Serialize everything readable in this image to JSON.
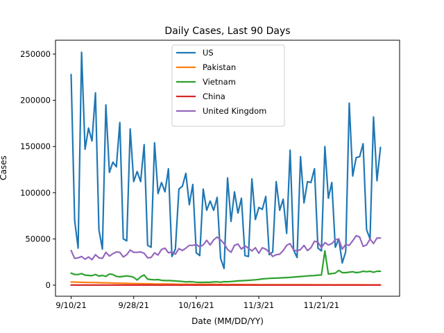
{
  "chart_data": {
    "type": "line",
    "title": "Daily Cases, Last 90 Days",
    "xlabel": "Date (MM/DD/YY)",
    "ylabel": "Cases",
    "xlim": [
      -4.5,
      94.5
    ],
    "ylim": [
      -12000,
      265000
    ],
    "x_ticks": [
      {
        "label": "9/10/21",
        "day": 0
      },
      {
        "label": "9/28/21",
        "day": 18
      },
      {
        "label": "10/16/21",
        "day": 36
      },
      {
        "label": "11/3/21",
        "day": 54
      },
      {
        "label": "11/21/21",
        "day": 72
      }
    ],
    "y_ticks": [
      {
        "label": "0",
        "value": 0
      },
      {
        "label": "50000",
        "value": 50000
      },
      {
        "label": "100000",
        "value": 100000
      },
      {
        "label": "150000",
        "value": 150000
      },
      {
        "label": "200000",
        "value": 200000
      },
      {
        "label": "250000",
        "value": 250000
      }
    ],
    "grid": false,
    "legend_position": "upper center",
    "series": [
      {
        "name": "US",
        "color": "#1f77b4",
        "values": [
          228000,
          70000,
          40000,
          252000,
          147000,
          170000,
          156000,
          208000,
          60000,
          39000,
          195000,
          122000,
          133000,
          128000,
          176000,
          50000,
          48000,
          169000,
          112000,
          123000,
          112000,
          152000,
          43000,
          41000,
          154000,
          99000,
          111000,
          101000,
          126000,
          31000,
          39000,
          104000,
          107000,
          121000,
          87000,
          109000,
          35000,
          32000,
          104000,
          81000,
          91000,
          81000,
          95000,
          29000,
          18000,
          116000,
          69000,
          101000,
          78000,
          94000,
          32000,
          31000,
          115000,
          71000,
          84000,
          82000,
          96000,
          33000,
          36000,
          112000,
          81000,
          93000,
          56000,
          146000,
          38000,
          30000,
          139000,
          89000,
          112000,
          111000,
          126000,
          40000,
          37000,
          150000,
          94000,
          111000,
          41000,
          50000,
          24000,
          36000,
          197000,
          118000,
          138000,
          139000,
          153000,
          60000,
          50000,
          182000,
          113000,
          149000
        ]
      },
      {
        "name": "Pakistan",
        "color": "#ff7f0e",
        "values": [
          3400,
          3300,
          3200,
          3100,
          3000,
          2900,
          2900,
          2800,
          2700,
          2600,
          2500,
          2400,
          2300,
          2200,
          2100,
          2000,
          1900,
          1800,
          1700,
          1600,
          1500,
          1500,
          1400,
          1400,
          1300,
          1300,
          1200,
          1200,
          1100,
          1100,
          1000,
          1000,
          1000,
          900,
          900,
          900,
          900,
          850,
          850,
          800,
          800,
          800,
          750,
          750,
          700,
          700,
          700,
          650,
          650,
          650,
          600,
          600,
          600,
          600,
          550,
          550,
          550,
          550,
          500,
          500,
          500,
          500,
          480,
          480,
          470,
          460,
          450,
          450,
          440,
          430,
          420,
          420,
          410,
          400,
          400,
          400,
          390,
          380,
          380,
          370,
          370,
          360,
          360,
          350,
          350,
          340,
          340,
          330,
          330,
          320
        ]
      },
      {
        "name": "Vietnam",
        "color": "#2ca02c",
        "values": [
          13000,
          11500,
          11500,
          12500,
          10800,
          10500,
          10200,
          11600,
          9800,
          10500,
          9500,
          12000,
          11500,
          9500,
          9000,
          9500,
          10000,
          9500,
          8500,
          5500,
          9000,
          11000,
          6500,
          6000,
          5800,
          6000,
          5200,
          5000,
          5000,
          4800,
          4500,
          4200,
          4000,
          3500,
          3800,
          3600,
          3200,
          3000,
          3000,
          3200,
          3100,
          3500,
          3600,
          3200,
          3800,
          3700,
          3900,
          4200,
          4600,
          4800,
          5000,
          5200,
          5500,
          5800,
          6200,
          6800,
          7000,
          7300,
          7500,
          7600,
          7800,
          8000,
          8200,
          8400,
          8700,
          9000,
          9300,
          9600,
          10000,
          10200,
          10400,
          10800,
          11000,
          37000,
          12000,
          12500,
          13000,
          16000,
          13500,
          13500,
          14000,
          14500,
          13500,
          14000,
          15000,
          14500,
          15000,
          14000,
          15000,
          15000
        ]
      },
      {
        "name": "China",
        "color": "#d62728",
        "values": [
          80,
          75,
          70,
          85,
          80,
          70,
          60,
          70,
          80,
          85,
          90,
          75,
          70,
          65,
          70,
          75,
          80,
          70,
          60,
          55,
          50,
          60,
          70,
          65,
          55,
          40,
          45,
          50,
          55,
          60,
          50,
          45,
          40,
          55,
          65,
          70,
          60,
          50,
          45,
          55,
          60,
          70,
          65,
          55,
          50,
          45,
          50,
          55,
          60,
          65,
          70,
          60,
          55,
          50,
          45,
          50,
          55,
          60,
          65,
          60,
          55,
          50,
          55,
          60,
          65,
          60,
          55,
          50,
          45,
          50,
          55,
          60,
          65,
          60,
          55,
          50,
          45,
          50,
          55,
          60,
          65,
          60,
          55,
          50,
          45,
          50,
          55,
          60,
          60,
          60
        ]
      },
      {
        "name": "United Kingdom",
        "color": "#9467bd",
        "values": [
          37500,
          29000,
          29500,
          31000,
          28000,
          30500,
          27500,
          33000,
          29500,
          29000,
          35500,
          31500,
          34000,
          36000,
          35500,
          30500,
          33000,
          38000,
          35500,
          35500,
          36000,
          34500,
          29500,
          30000,
          35000,
          32500,
          38500,
          40000,
          35000,
          36000,
          33500,
          39500,
          37500,
          40000,
          43000,
          43000,
          44000,
          41500,
          43500,
          48500,
          43500,
          49000,
          52000,
          49000,
          45000,
          38500,
          35500,
          43000,
          44500,
          39000,
          42500,
          40000,
          37000,
          40500,
          34500,
          40500,
          39000,
          35500,
          31000,
          33000,
          33500,
          37500,
          43000,
          45000,
          38000,
          37000,
          38500,
          43000,
          37500,
          40500,
          47500,
          46500,
          40500,
          46000,
          43500,
          45000,
          49000,
          50000,
          39000,
          44000,
          43000,
          48000,
          53500,
          52000,
          42000,
          43500,
          50000,
          45000,
          51000,
          51000
        ]
      }
    ]
  }
}
